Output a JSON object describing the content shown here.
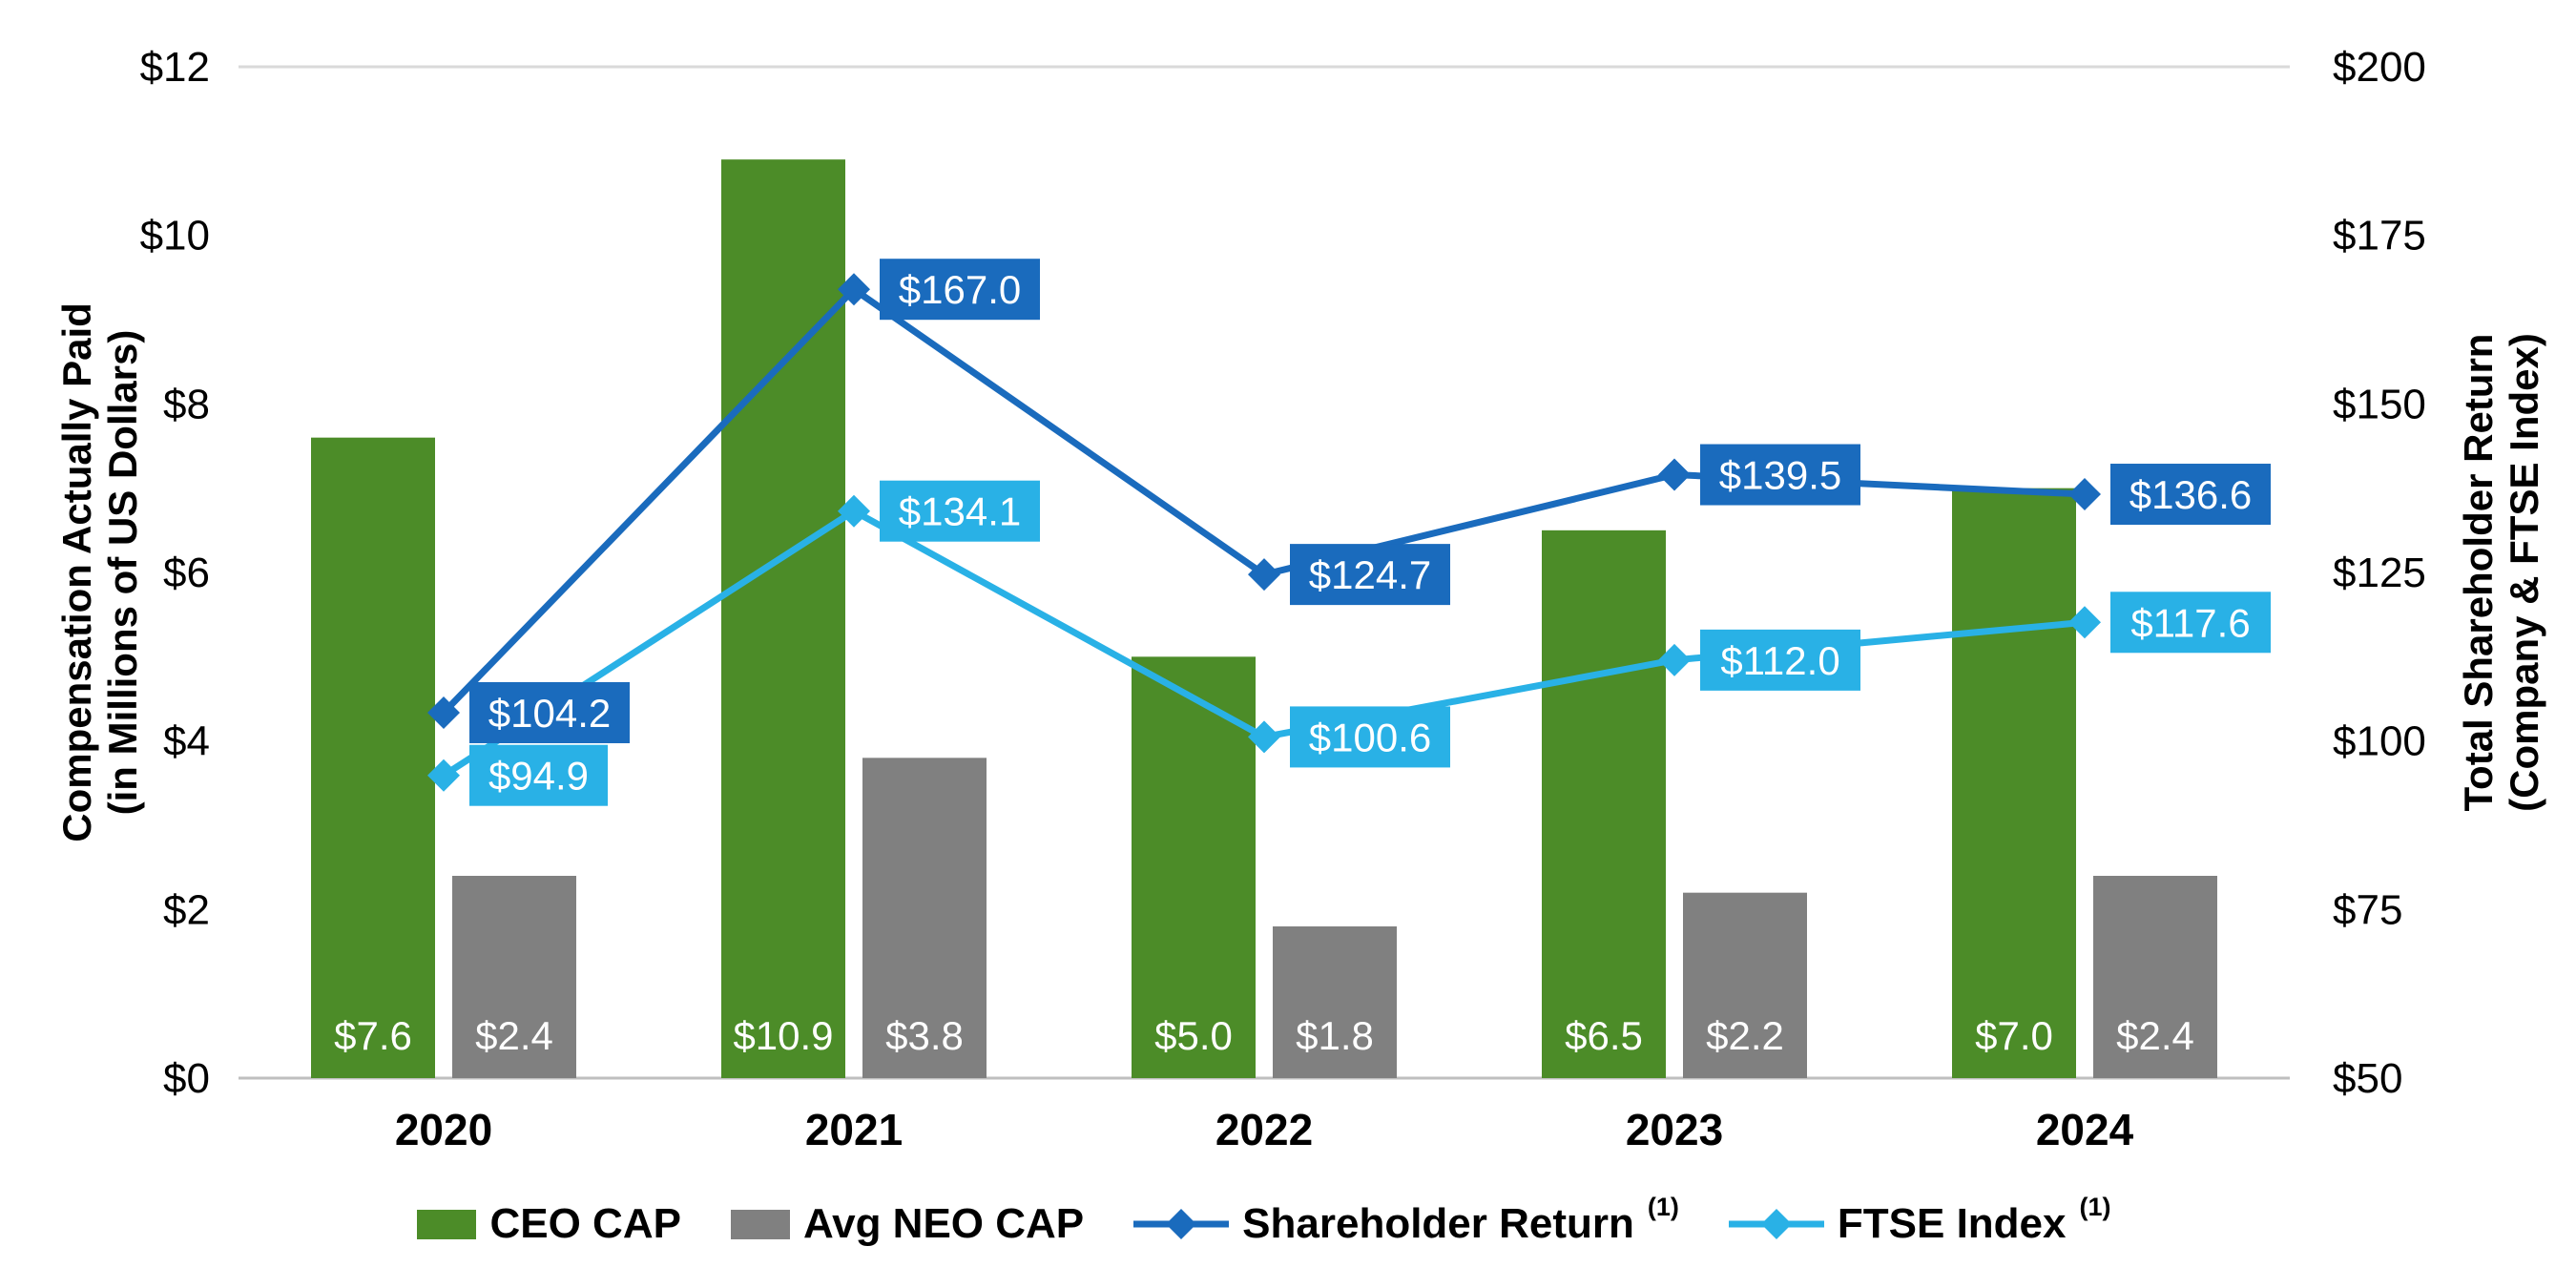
{
  "chart_data": {
    "type": "bar-line-combo",
    "categories": [
      "2020",
      "2021",
      "2022",
      "2023",
      "2024"
    ],
    "bar_series": [
      {
        "name": "CEO CAP",
        "color": "#4c8c28",
        "values": [
          7.6,
          10.9,
          5.0,
          6.5,
          7.0
        ],
        "labels": [
          "$7.6",
          "$10.9",
          "$5.0",
          "$6.5",
          "$7.0"
        ]
      },
      {
        "name": "Avg NEO CAP",
        "color": "#808080",
        "values": [
          2.4,
          3.8,
          1.8,
          2.2,
          2.4
        ],
        "labels": [
          "$2.4",
          "$3.8",
          "$1.8",
          "$2.2",
          "$2.4"
        ]
      }
    ],
    "line_series": [
      {
        "name": "Shareholder Return",
        "superscript": "(1)",
        "color": "#1a6bbd",
        "values": [
          104.2,
          167.0,
          124.7,
          139.5,
          136.6
        ],
        "labels": [
          "$104.2",
          "$167.0",
          "$124.7",
          "$139.5",
          "$136.6"
        ]
      },
      {
        "name": "FTSE Index",
        "superscript": "(1)",
        "color": "#29b1e6",
        "values": [
          94.9,
          134.1,
          100.6,
          112.0,
          117.6
        ],
        "labels": [
          "$94.9",
          "$134.1",
          "$100.6",
          "$112.0",
          "$117.6"
        ]
      }
    ],
    "left_axis": {
      "title_line1": "Compensation Actually Paid",
      "title_line2": "(in Millions of US Dollars)",
      "min": 0,
      "max": 12,
      "step": 2,
      "tick_labels": [
        "$0",
        "$2",
        "$4",
        "$6",
        "$8",
        "$10",
        "$12"
      ]
    },
    "right_axis": {
      "title_line1": "Total Shareholder Return",
      "title_line2": "(Company & FTSE Index)",
      "min": 50,
      "max": 200,
      "step": 25,
      "tick_labels": [
        "$50",
        "$75",
        "$100",
        "$125",
        "$150",
        "$175",
        "$200"
      ]
    },
    "grid": "top-and-bottom-only",
    "legend_position": "bottom"
  }
}
